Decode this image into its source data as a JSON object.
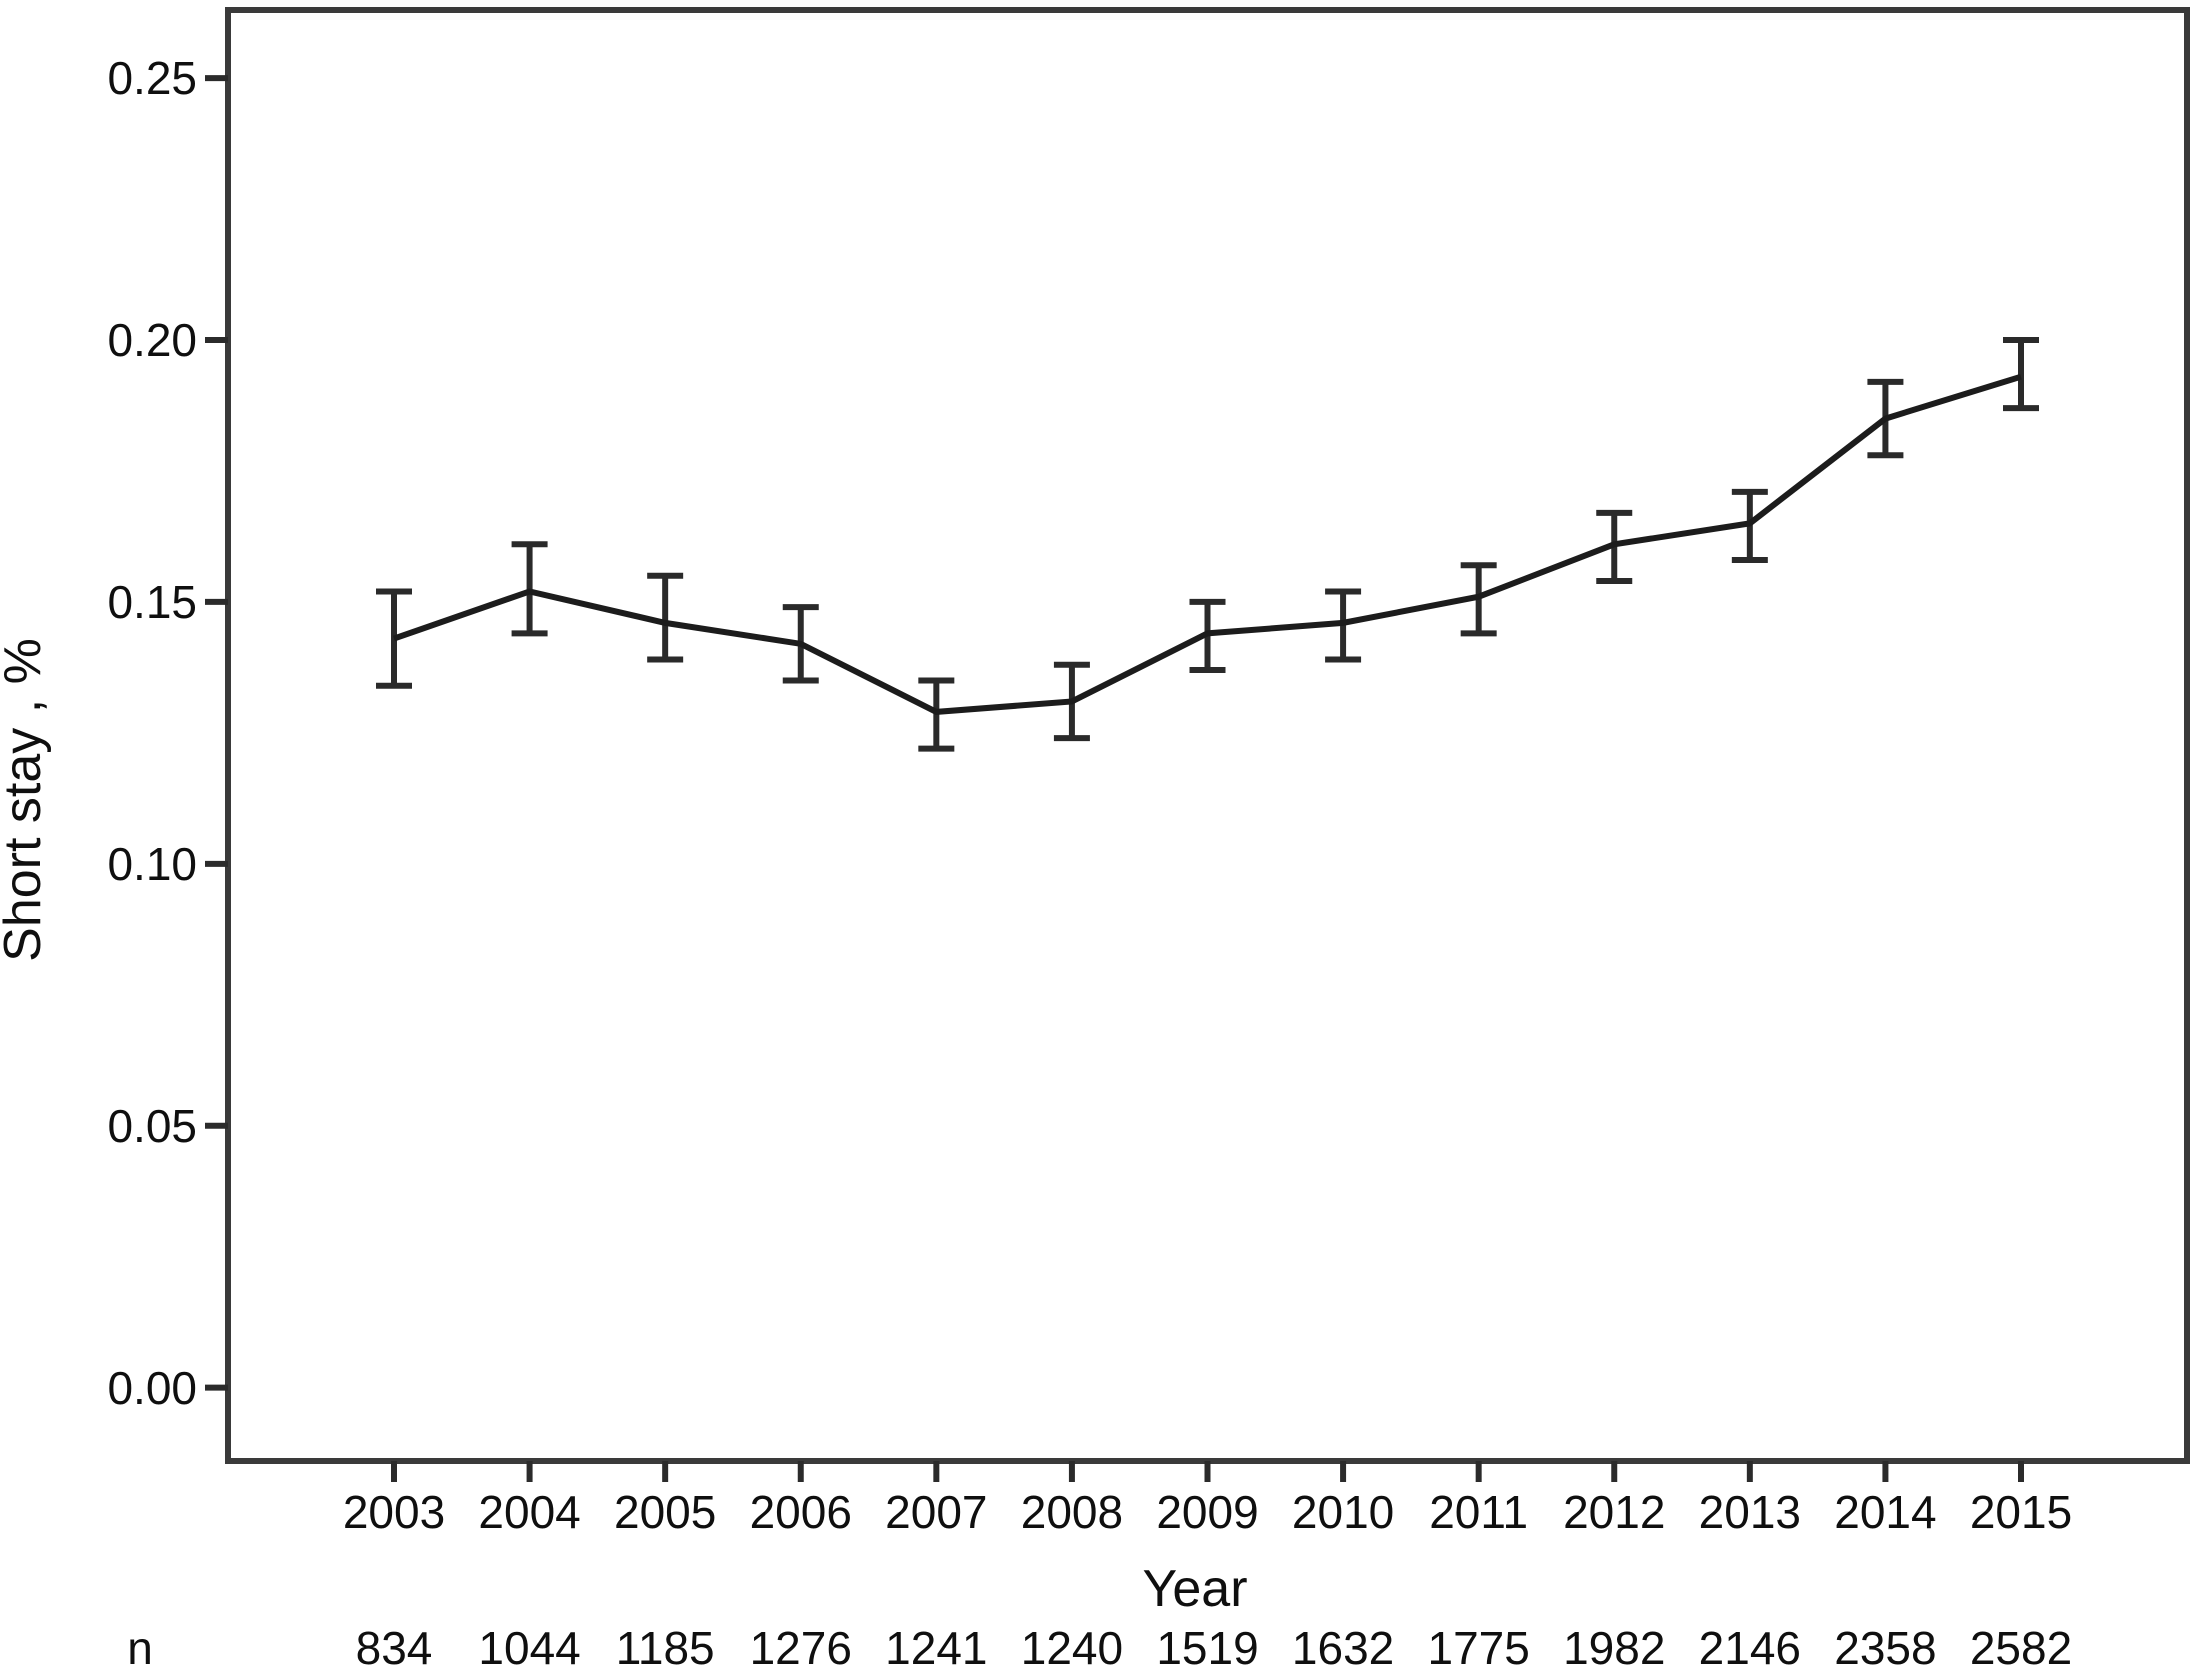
{
  "figure": {
    "background": "#ffffff",
    "colors": {
      "series_line": "#1c1c1c",
      "error_bar": "#2a2a2a",
      "frame": "#3a3a3a",
      "tick": "#2b2b2b",
      "text": "#0f0f0f"
    }
  },
  "chart_data": {
    "type": "line",
    "title": "",
    "xlabel": "Year",
    "ylabel": "Short stay , %",
    "x": [
      2003,
      2004,
      2005,
      2006,
      2007,
      2008,
      2009,
      2010,
      2011,
      2012,
      2013,
      2014,
      2015
    ],
    "series": [
      {
        "name": "Short stay %",
        "values": [
          0.143,
          0.152,
          0.146,
          0.142,
          0.129,
          0.131,
          0.144,
          0.146,
          0.151,
          0.161,
          0.165,
          0.185,
          0.193
        ],
        "ci_low": [
          0.134,
          0.144,
          0.139,
          0.135,
          0.122,
          0.124,
          0.137,
          0.139,
          0.144,
          0.154,
          0.158,
          0.178,
          0.187
        ],
        "ci_high": [
          0.152,
          0.161,
          0.155,
          0.149,
          0.135,
          0.138,
          0.15,
          0.152,
          0.157,
          0.167,
          0.171,
          0.192,
          0.2
        ]
      }
    ],
    "n_row": {
      "label": "n",
      "values": [
        834,
        1044,
        1185,
        1276,
        1241,
        1240,
        1519,
        1632,
        1775,
        1982,
        2146,
        2358,
        2582
      ]
    },
    "y_ticks": [
      0.0,
      0.05,
      0.1,
      0.15,
      0.2,
      0.25
    ],
    "y_tick_decimals": 2,
    "ylim": [
      -0.014,
      0.263
    ],
    "grid": false,
    "legend": false,
    "error_bars": true
  }
}
